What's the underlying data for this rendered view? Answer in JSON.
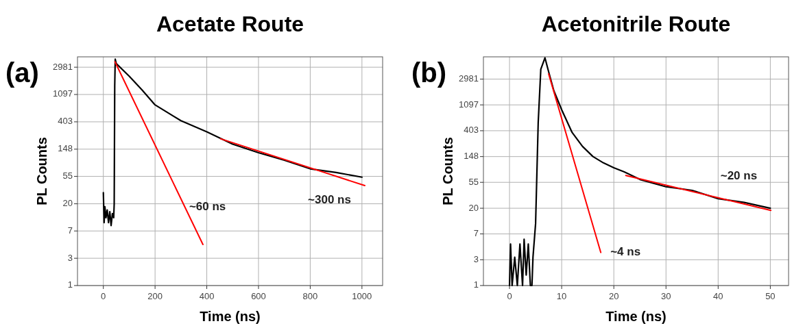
{
  "chart_data": [
    {
      "type": "line",
      "title": "Acetate Route",
      "xlabel": "Time (ns)",
      "ylabel": "PL Counts",
      "log": "y",
      "grid": true,
      "marker": "none",
      "line_style": "solid",
      "xlim": [
        -100,
        1080
      ],
      "xticks": [
        0,
        200,
        400,
        600,
        800,
        1000
      ],
      "ylim": [
        1,
        4360
      ],
      "yticks": [
        1,
        {
          "value": 2.718,
          "label": "3"
        },
        {
          "value": 7.389,
          "label": "7"
        },
        20,
        {
          "value": 54.6,
          "label": "55"
        },
        148,
        403,
        1097,
        2981
      ],
      "annotations": [
        "(a)",
        "~60 ns",
        "~300 ns"
      ],
      "series": [
        {
          "color": "#000000",
          "x": [
            0,
            3,
            6,
            10,
            15,
            20,
            25,
            30,
            35,
            40,
            42,
            44,
            46,
            50,
            100,
            150,
            200,
            300,
            400,
            500,
            600,
            700,
            800,
            900,
            1000
          ],
          "values": [
            30,
            10,
            18,
            12,
            16,
            10,
            15,
            9,
            14,
            12,
            20,
            1500,
            4000,
            3400,
            2150,
            1290,
            750,
            420,
            280,
            178,
            130,
            99,
            72,
            63,
            53
          ]
        },
        {
          "color": "#ff0000",
          "x": [
            45,
            385
          ],
          "values": [
            3640,
            4.5
          ]
        },
        {
          "color": "#ff0000",
          "x": [
            453,
            1011
          ],
          "values": [
            217,
            39
          ]
        }
      ]
    },
    {
      "type": "line",
      "title": "Acetonitrile Route",
      "xlabel": "Time (ns)",
      "ylabel": "PL Counts",
      "log": "y",
      "grid": true,
      "marker": "none",
      "line_style": "solid",
      "xlim": [
        -5,
        53.5
      ],
      "xticks": [
        0,
        10,
        20,
        30,
        40,
        50
      ],
      "ylim": [
        1,
        7060
      ],
      "yticks": [
        1,
        {
          "value": 2.718,
          "label": "3"
        },
        {
          "value": 7.389,
          "label": "7"
        },
        20,
        {
          "value": 54.6,
          "label": "55"
        },
        148,
        403,
        1097,
        2981
      ],
      "annotations": [
        "(b)",
        "~4 ns",
        "~20 ns"
      ],
      "series": [
        {
          "color": "#000000",
          "x": [
            0,
            0.2,
            0.5,
            1,
            1.5,
            2,
            2.5,
            2.8,
            3.2,
            3.6,
            4,
            4.3,
            4.5,
            5,
            5.5,
            6,
            6.8,
            7.5,
            8.5,
            10,
            12,
            14,
            16,
            18,
            20,
            22,
            25,
            30,
            35,
            40,
            45,
            50
          ],
          "values": [
            1,
            5,
            1,
            3,
            1,
            5,
            1,
            6,
            1.5,
            5,
            1,
            1,
            3,
            11,
            550,
            4370,
            6800,
            3960,
            1900,
            910,
            377,
            219,
            148,
            116,
            96,
            82,
            61,
            46,
            40,
            29,
            25,
            20
          ]
        },
        {
          "color": "#ff0000",
          "x": [
            7.5,
            17.5
          ],
          "values": [
            3650,
            3.6
          ]
        },
        {
          "color": "#ff0000",
          "x": [
            22.3,
            50.1
          ],
          "values": [
            71,
            18.4
          ]
        }
      ]
    }
  ]
}
